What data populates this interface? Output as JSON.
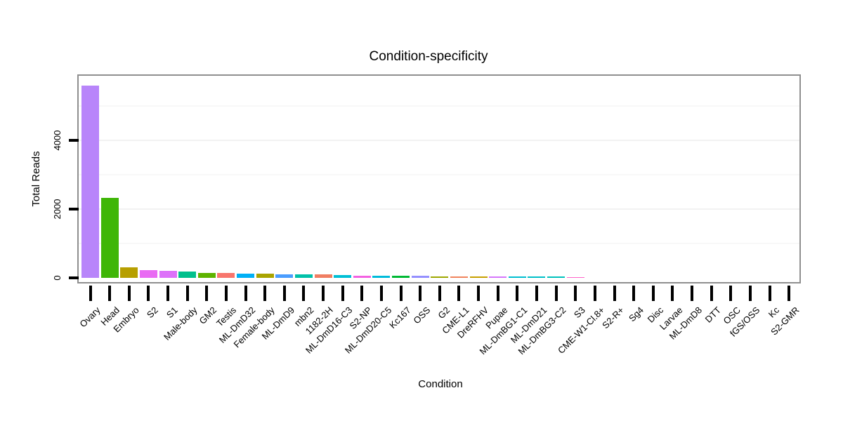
{
  "title": "Condition-specificity",
  "axes": {
    "x_title": "Condition",
    "y_title": "Total Reads",
    "y_tick_labels": [
      "0",
      "2000",
      "4000"
    ]
  },
  "chart_data": {
    "type": "bar",
    "title": "Condition-specificity",
    "xlabel": "Condition",
    "ylabel": "Total Reads",
    "ylim": [
      0,
      5800
    ],
    "yticks": [
      0,
      2000,
      4000
    ],
    "major_gridlines": [
      2000,
      4000
    ],
    "minor_gridlines": [
      1000,
      3000,
      5000
    ],
    "legend_position": "none",
    "categories": [
      "Ovary",
      "Head",
      "Embryo",
      "S2",
      "S1",
      "Male-body",
      "GM2",
      "Testis",
      "ML-DmD32",
      "Female-body",
      "ML-DmD9",
      "mbn2",
      "1182-2H",
      "ML-DmD16-C3",
      "S2-NP",
      "ML-DmD20-C5",
      "Kc167",
      "OSS",
      "G2",
      "CME-L1",
      "DreRFHV",
      "Pupae",
      "ML-DmBG1-C1",
      "ML-DmD21",
      "ML-DmBG3-C2",
      "S3",
      "CME-W1-Cl.8+",
      "S2-R+",
      "Sg4",
      "Disc",
      "Larvae",
      "ML-DmD8",
      "DTT",
      "OSC",
      "fGS/OSS",
      "Kc",
      "S2-GMR"
    ],
    "values": [
      5590,
      2330,
      300,
      225,
      195,
      185,
      140,
      135,
      120,
      115,
      100,
      98,
      95,
      72,
      70,
      68,
      65,
      55,
      45,
      42,
      40,
      36,
      34,
      33,
      32,
      30,
      0,
      0,
      0,
      0,
      0,
      0,
      0,
      0,
      0,
      0,
      0
    ],
    "bar_colors": [
      "#B885FA",
      "#3FB607",
      "#B79F00",
      "#E96BF3",
      "#DD71F9",
      "#00C08C",
      "#5EB300",
      "#F8766D",
      "#00B0F6",
      "#A9A400",
      "#4A9DFF",
      "#00C1A9",
      "#F07E62",
      "#00BFD5",
      "#F361E2",
      "#00BBDA",
      "#00B934",
      "#9590FF",
      "#9DA700",
      "#F0845C",
      "#C7A000",
      "#D576FB",
      "#00BED1",
      "#00C0C8",
      "#00C1BC",
      "#FF63C8",
      "#F8766D",
      "#E58700",
      "#C59900",
      "#A3A500",
      "#6BB100",
      "#00BA38",
      "#00BF7D",
      "#00BFC4",
      "#00B0F6",
      "#619CFF",
      "#B983FF"
    ],
    "colors": {
      "panel_border": "#8f8f8f",
      "tick": "#000000",
      "major_grid": "#f2f2f2",
      "minor_grid": "#f8f8f8",
      "background": "#ffffff"
    }
  }
}
